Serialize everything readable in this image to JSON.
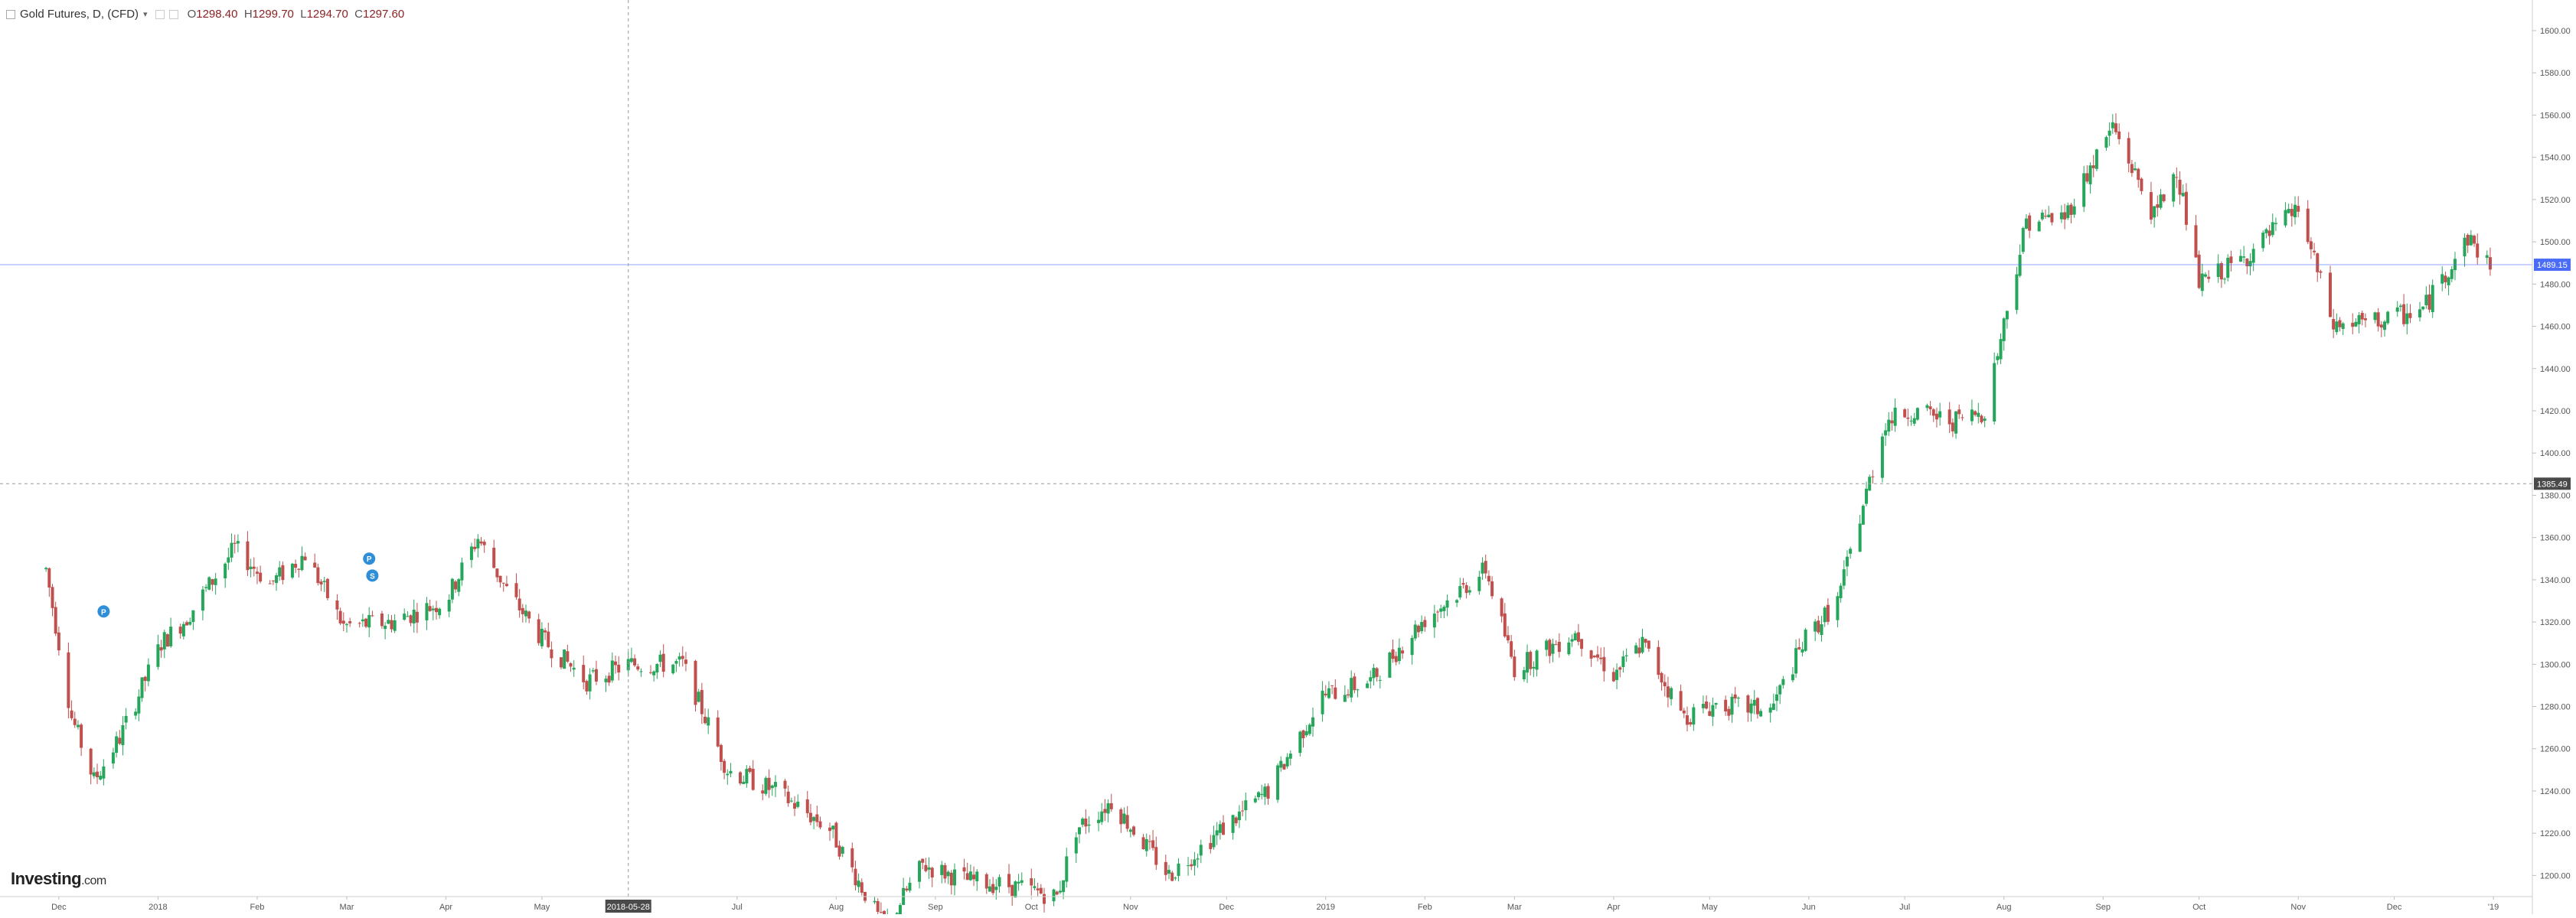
{
  "header": {
    "symbol": "Gold Futures, D, (CFD)",
    "open_label": "O",
    "open": "1298.40",
    "high_label": "H",
    "high": "1299.70",
    "low_label": "L",
    "low": "1294.70",
    "close_label": "C",
    "close": "1297.60"
  },
  "brand": {
    "name": "Investing",
    "suffix": ".com"
  },
  "colors": {
    "up": "#26a65b",
    "down": "#c0504d",
    "last_price_line": "#4a6cf7",
    "crosshair": "#9a9a9a"
  },
  "chart_data": {
    "type": "candlestick",
    "title": "Gold Futures, D, (CFD)",
    "x_axis": {
      "labels": [
        "Dec",
        "2018",
        "Feb",
        "Mar",
        "Apr",
        "May",
        "2018-05-28",
        "Jul",
        "Aug",
        "Sep",
        "Oct",
        "Nov",
        "Dec",
        "2019",
        "Feb",
        "Mar",
        "Apr",
        "May",
        "Jun",
        "Jul",
        "Aug",
        "Sep",
        "Oct",
        "Nov",
        "Dec",
        "'19"
      ]
    },
    "y_axis": {
      "range": [
        1190,
        1600
      ],
      "ticks": [
        "1200.00",
        "1220.00",
        "1240.00",
        "1260.00",
        "1280.00",
        "1300.00",
        "1320.00",
        "1340.00",
        "1360.00",
        "1380.00",
        "1400.00",
        "1420.00",
        "1440.00",
        "1460.00",
        "1480.00",
        "1500.00",
        "1520.00",
        "1540.00",
        "1560.00",
        "1580.00",
        "1600.00"
      ]
    },
    "last_price": {
      "label": "1489.15",
      "value": 1489.15
    },
    "crosshair": {
      "price_label": "1385.49",
      "price": 1385.49,
      "date_label": "2018-05-28"
    },
    "markers": [
      {
        "label": "P",
        "near": "Dec 2017"
      },
      {
        "label": "P",
        "near": "Mar 2018"
      },
      {
        "label": "S",
        "near": "Mar 2018"
      }
    ],
    "anchors": [
      [
        "2017-11-27",
        1345
      ],
      [
        "2017-12-05",
        1275
      ],
      [
        "2017-12-12",
        1245
      ],
      [
        "2017-12-20",
        1265
      ],
      [
        "2018-01-02",
        1310
      ],
      [
        "2018-01-10",
        1322
      ],
      [
        "2018-01-25",
        1355
      ],
      [
        "2018-02-05",
        1338
      ],
      [
        "2018-02-16",
        1352
      ],
      [
        "2018-02-28",
        1318
      ],
      [
        "2018-03-15",
        1320
      ],
      [
        "2018-04-01",
        1330
      ],
      [
        "2018-04-11",
        1360
      ],
      [
        "2018-04-20",
        1335
      ],
      [
        "2018-05-01",
        1312
      ],
      [
        "2018-05-15",
        1292
      ],
      [
        "2018-05-28",
        1300
      ],
      [
        "2018-06-14",
        1300
      ],
      [
        "2018-06-28",
        1250
      ],
      [
        "2018-07-13",
        1240
      ],
      [
        "2018-07-30",
        1222
      ],
      [
        "2018-08-16",
        1175
      ],
      [
        "2018-08-28",
        1205
      ],
      [
        "2018-09-10",
        1198
      ],
      [
        "2018-09-25",
        1195
      ],
      [
        "2018-10-09",
        1190
      ],
      [
        "2018-10-15",
        1222
      ],
      [
        "2018-10-26",
        1235
      ],
      [
        "2018-11-13",
        1200
      ],
      [
        "2018-11-28",
        1220
      ],
      [
        "2018-12-14",
        1240
      ],
      [
        "2018-12-31",
        1285
      ],
      [
        "2019-01-15",
        1292
      ],
      [
        "2019-01-31",
        1320
      ],
      [
        "2019-02-20",
        1345
      ],
      [
        "2019-03-01",
        1298
      ],
      [
        "2019-03-20",
        1315
      ],
      [
        "2019-04-01",
        1295
      ],
      [
        "2019-04-10",
        1310
      ],
      [
        "2019-04-23",
        1275
      ],
      [
        "2019-05-03",
        1281
      ],
      [
        "2019-05-20",
        1278
      ],
      [
        "2019-05-31",
        1312
      ],
      [
        "2019-06-10",
        1330
      ],
      [
        "2019-06-25",
        1415
      ],
      [
        "2019-07-03",
        1420
      ],
      [
        "2019-07-16",
        1415
      ],
      [
        "2019-07-26",
        1420
      ],
      [
        "2019-08-08",
        1510
      ],
      [
        "2019-08-20",
        1512
      ],
      [
        "2019-09-04",
        1555
      ],
      [
        "2019-09-17",
        1512
      ],
      [
        "2019-09-24",
        1535
      ],
      [
        "2019-10-01",
        1480
      ],
      [
        "2019-10-15",
        1492
      ],
      [
        "2019-11-01",
        1516
      ],
      [
        "2019-11-12",
        1460
      ],
      [
        "2019-11-26",
        1462
      ],
      [
        "2019-12-10",
        1468
      ],
      [
        "2019-12-24",
        1502
      ],
      [
        "2019-12-31",
        1489
      ]
    ]
  }
}
